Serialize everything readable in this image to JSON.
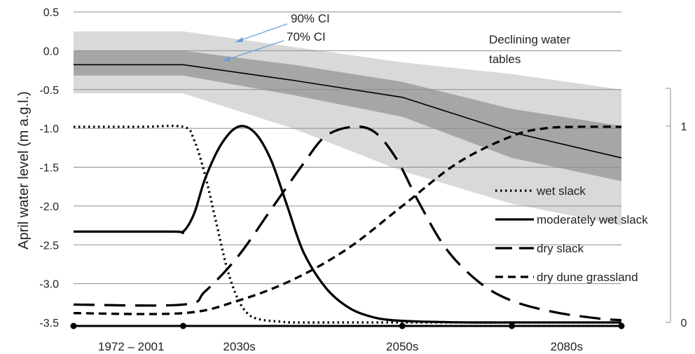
{
  "chart_data": {
    "type": "line",
    "ylabel": "April water level (m a.g.l.)",
    "ylim": [
      -3.5,
      0.5
    ],
    "yticks": [
      "0.5",
      "0.0",
      "-0.5",
      "-1.0",
      "-1.5",
      "-2.0",
      "-2.5",
      "-3.0",
      "-3.5"
    ],
    "y2ticks": [
      "1",
      "0"
    ],
    "y2lim": [
      0,
      1
    ],
    "x_labels": [
      "1972 – 2001",
      "2030s",
      "2050s",
      "2080s"
    ],
    "grid": true,
    "band_x": [
      0,
      1,
      2,
      3,
      4,
      5
    ],
    "water_table": {
      "mean": [
        -0.18,
        -0.18,
        -0.38,
        -0.6,
        -1.05,
        -1.38
      ],
      "ci70_upper": [
        0.0,
        0.0,
        -0.18,
        -0.4,
        -0.75,
        -0.97
      ],
      "ci70_lower": [
        -0.32,
        -0.32,
        -0.57,
        -0.85,
        -1.38,
        -1.68
      ],
      "ci90_upper": [
        0.25,
        0.25,
        0.05,
        -0.15,
        -0.3,
        -0.5
      ],
      "ci90_lower": [
        -0.55,
        -0.55,
        -1.0,
        -1.55,
        -1.97,
        -2.25
      ]
    },
    "annotations": {
      "ci90": "90% CI",
      "ci70": "70% CI",
      "declining_line1": "Declining water",
      "declining_line2": "tables"
    },
    "series": [
      {
        "name": "wet slack",
        "style": "dotted",
        "x": [
          0,
          0.6,
          1.0,
          1.1,
          1.2,
          1.3,
          1.4,
          1.5,
          1.6,
          1.7,
          1.8,
          1.9,
          2.0,
          2.5,
          3.0,
          4.0,
          5.0
        ],
        "values": [
          -0.98,
          -0.98,
          -0.98,
          -1.15,
          -1.6,
          -2.2,
          -2.8,
          -3.2,
          -3.4,
          -3.46,
          -3.48,
          -3.49,
          -3.5,
          -3.5,
          -3.5,
          -3.5,
          -3.5
        ]
      },
      {
        "name": "moderately wet slack",
        "style": "solid",
        "x": [
          0,
          0.9,
          1.0,
          1.1,
          1.2,
          1.35,
          1.5,
          1.65,
          1.8,
          1.95,
          2.1,
          2.3,
          2.5,
          2.7,
          2.9,
          3.2,
          3.6,
          4.0,
          5.0
        ],
        "values": [
          -2.33,
          -2.33,
          -2.33,
          -2.1,
          -1.65,
          -1.2,
          -0.98,
          -1.05,
          -1.4,
          -2.0,
          -2.6,
          -3.05,
          -3.3,
          -3.42,
          -3.47,
          -3.49,
          -3.5,
          -3.5,
          -3.5
        ]
      },
      {
        "name": "dry slack",
        "style": "long-dash",
        "x": [
          0,
          1.0,
          1.2,
          1.5,
          1.8,
          2.1,
          2.3,
          2.55,
          2.75,
          2.95,
          3.15,
          3.4,
          3.7,
          4.0,
          4.4,
          4.8,
          5.0
        ],
        "values": [
          -3.27,
          -3.27,
          -3.1,
          -2.65,
          -2.05,
          -1.45,
          -1.1,
          -0.98,
          -1.05,
          -1.4,
          -1.95,
          -2.55,
          -2.98,
          -3.22,
          -3.37,
          -3.45,
          -3.47
        ]
      },
      {
        "name": "dry dune grassland",
        "style": "short-dash",
        "x": [
          0,
          1.0,
          1.5,
          2.0,
          2.5,
          3.0,
          3.5,
          4.0,
          4.3,
          4.6,
          5.0
        ],
        "values": [
          -3.38,
          -3.38,
          -3.22,
          -2.95,
          -2.55,
          -2.0,
          -1.45,
          -1.1,
          -1.0,
          -0.98,
          -0.98
        ]
      }
    ]
  }
}
